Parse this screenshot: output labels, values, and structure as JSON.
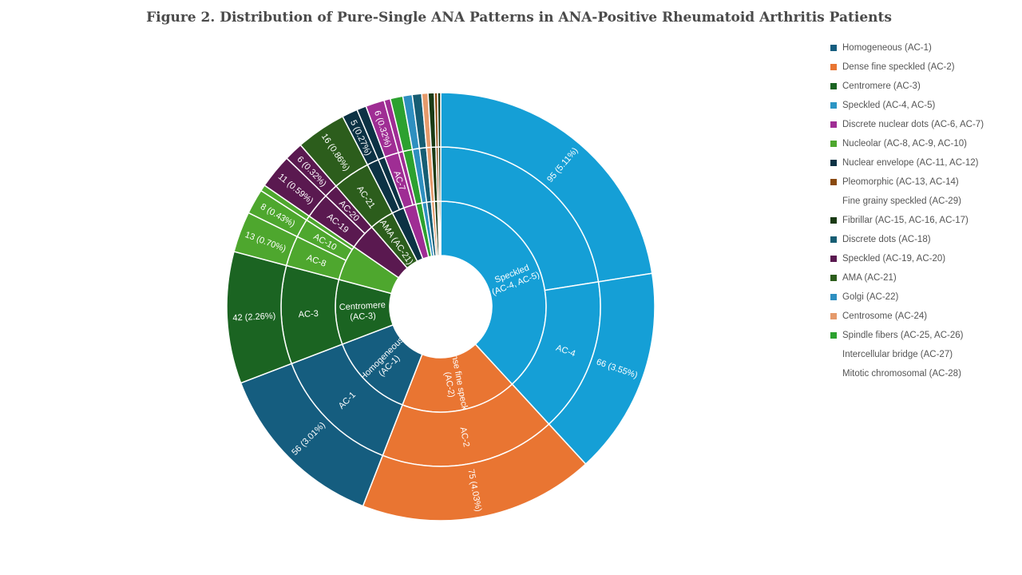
{
  "chart_data": {
    "type": "sunburst",
    "title": "Figure 2. Distribution of Pure-Single ANA Patterns in ANA-Positive Rheumatoid Arthritis Patients",
    "categories": [
      {
        "name": "Speckled (AC-4, AC-5)",
        "label": "Speckled (AC-4, AC-5)",
        "value": 161,
        "percent": 8.66,
        "color": "#159fd6",
        "children": [
          {
            "name": "AC-5",
            "value": 95,
            "percent": 5.11,
            "children": [
              {
                "value": 95,
                "percent": 5.11
              }
            ]
          },
          {
            "name": "AC-4",
            "value": 66,
            "percent": 3.55,
            "children": [
              {
                "value": 66,
                "percent": 3.55
              }
            ]
          }
        ]
      },
      {
        "name": "Dense fine speckled (AC-2)",
        "label": "Dense fine speckled (AC-2)",
        "value": 75,
        "percent": 4.03,
        "color": "#e97532",
        "children": [
          {
            "name": "AC-2",
            "value": 75,
            "percent": 4.03,
            "children": [
              {
                "value": 75,
                "percent": 4.03
              }
            ]
          }
        ]
      },
      {
        "name": "Homogeneous (AC-1)",
        "label": "Homogeneous (AC-1)",
        "value": 56,
        "percent": 3.01,
        "color": "#155d7f",
        "children": [
          {
            "name": "AC-1",
            "value": 56,
            "percent": 3.01,
            "children": [
              {
                "value": 56,
                "percent": 3.01
              }
            ]
          }
        ]
      },
      {
        "name": "Centromere (AC-3)",
        "label": "Centromere (AC-3)",
        "value": 42,
        "percent": 2.26,
        "color": "#1b6422",
        "children": [
          {
            "name": "AC-3",
            "value": 42,
            "percent": 2.26,
            "children": [
              {
                "value": 42,
                "percent": 2.26
              }
            ]
          }
        ]
      },
      {
        "name": "Nucleolar (AC-8, AC-9, AC-10)",
        "label": "",
        "value": 23,
        "percent": 1.24,
        "color": "#4ea72e",
        "children": [
          {
            "name": "AC-8",
            "value": 13,
            "percent": 0.7,
            "children": [
              {
                "value": 13,
                "percent": 0.7
              }
            ]
          },
          {
            "name": "AC-10",
            "value": 8,
            "percent": 0.43,
            "children": [
              {
                "value": 8,
                "percent": 0.43
              }
            ]
          },
          {
            "name": "AC-9",
            "value": 2,
            "percent": 0.11,
            "children": [
              {
                "value": 2,
                "percent": 0.11
              }
            ]
          }
        ]
      },
      {
        "name": "Speckled (AC-19, AC-20)",
        "label": "",
        "value": 17,
        "percent": 0.91,
        "color": "#5a1950",
        "children": [
          {
            "name": "AC-19",
            "value": 11,
            "percent": 0.59,
            "children": [
              {
                "value": 11,
                "percent": 0.59
              }
            ]
          },
          {
            "name": "AC-20",
            "value": 6,
            "percent": 0.32,
            "children": [
              {
                "value": 6,
                "percent": 0.32
              }
            ]
          }
        ]
      },
      {
        "name": "AMA (AC-21)",
        "label": "AMA (AC-21)",
        "value": 16,
        "percent": 0.86,
        "color": "#2c5d1c",
        "children": [
          {
            "name": "AC-21",
            "value": 16,
            "percent": 0.86,
            "children": [
              {
                "value": 16,
                "percent": 0.86
              }
            ]
          }
        ]
      },
      {
        "name": "Nuclear envelope (AC-11, AC-12)",
        "label": "",
        "value": 8,
        "percent": 0.43,
        "color": "#0c3244",
        "children": [
          {
            "name": "AC-12",
            "value": 5,
            "percent": 0.27,
            "children": [
              {
                "value": 5,
                "percent": 0.27
              }
            ]
          },
          {
            "name": "AC-11",
            "value": 3,
            "percent": 0.16,
            "children": [
              {
                "value": 3,
                "percent": 0.16
              }
            ]
          }
        ]
      },
      {
        "name": "Discrete nuclear dots (AC-6, AC-7)",
        "label": "",
        "value": 8,
        "percent": 0.43,
        "color": "#9f2d94",
        "children": [
          {
            "name": "AC-7",
            "value": 6,
            "percent": 0.32,
            "children": [
              {
                "value": 6,
                "percent": 0.32
              }
            ]
          },
          {
            "name": "AC-6",
            "value": 2,
            "percent": 0.11,
            "children": [
              {
                "value": 2,
                "percent": 0.11
              }
            ]
          }
        ]
      },
      {
        "name": "Spindle fibers (AC-25, AC-26)",
        "label": "",
        "value": 4,
        "percent": 0.22,
        "color": "#2ca12f",
        "children": [
          {
            "name": "AC-25",
            "value": 4,
            "percent": 0.22,
            "children": [
              {
                "value": 4,
                "percent": 0.22
              }
            ]
          }
        ]
      },
      {
        "name": "Golgi (AC-22)",
        "label": "",
        "value": 3,
        "percent": 0.16,
        "color": "#2e8fc0",
        "children": [
          {
            "name": "AC-22",
            "value": 3,
            "percent": 0.16,
            "children": [
              {
                "value": 3,
                "percent": 0.16
              }
            ]
          }
        ]
      },
      {
        "name": "Discrete dots (AC-18)",
        "label": "",
        "value": 3,
        "percent": 0.16,
        "color": "#165d73",
        "children": [
          {
            "name": "AC-18",
            "value": 3,
            "percent": 0.16,
            "children": [
              {
                "value": 3,
                "percent": 0.16
              }
            ]
          }
        ]
      },
      {
        "name": "Centrosome (AC-24)",
        "label": "",
        "value": 2,
        "percent": 0.11,
        "color": "#e59a6b",
        "children": [
          {
            "name": "AC-24",
            "value": 2,
            "percent": 0.11,
            "children": [
              {
                "value": 2,
                "percent": 0.11
              }
            ]
          }
        ]
      },
      {
        "name": "Fibrillar (AC-15, AC-16, AC-17)",
        "label": "",
        "value": 2,
        "percent": 0.11,
        "color": "#1a3a14",
        "children": [
          {
            "name": "AC-15",
            "value": 2,
            "percent": 0.11,
            "children": [
              {
                "value": 2,
                "percent": 0.11
              }
            ]
          }
        ]
      },
      {
        "name": "Pleomorphic (AC-13, AC-14)",
        "label": "",
        "value": 1,
        "percent": 0.05,
        "color": "#8a4a10",
        "children": [
          {
            "name": "AC-14",
            "value": 1,
            "percent": 0.05,
            "children": [
              {
                "value": 1,
                "percent": 0.05
              }
            ]
          }
        ]
      },
      {
        "name": "Fibrillar (AC-16)",
        "label": "",
        "value": 1,
        "percent": 0.05,
        "color": "#1a3a14",
        "children": [
          {
            "name": "AC-16",
            "value": 1,
            "percent": 0.05,
            "children": [
              {
                "value": 1,
                "percent": 0.05
              }
            ]
          }
        ]
      }
    ],
    "legend": [
      {
        "label": "Homogeneous (AC-1)",
        "color": "#155d7f"
      },
      {
        "label": "Dense fine speckled (AC-2)",
        "color": "#e97532"
      },
      {
        "label": "Centromere (AC-3)",
        "color": "#1b6422"
      },
      {
        "label": "Speckled (AC-4, AC-5)",
        "color": "#2b95c4"
      },
      {
        "label": "Discrete nuclear dots (AC-6, AC-7)",
        "color": "#9f2d94"
      },
      {
        "label": "Nucleolar (AC-8, AC-9, AC-10)",
        "color": "#4ea72e"
      },
      {
        "label": "Nuclear envelope (AC-11, AC-12)",
        "color": "#0c3244"
      },
      {
        "label": "Pleomorphic (AC-13, AC-14)",
        "color": "#8a4a10"
      },
      {
        "label": "Fine grainy speckled (AC-29)",
        "color": "#ffffff"
      },
      {
        "label": "Fibrillar (AC-15, AC-16, AC-17)",
        "color": "#1a3a14"
      },
      {
        "label": "Discrete dots (AC-18)",
        "color": "#165d73"
      },
      {
        "label": "Speckled (AC-19, AC-20)",
        "color": "#5a1950"
      },
      {
        "label": "AMA (AC-21)",
        "color": "#2c5d1c"
      },
      {
        "label": "Golgi (AC-22)",
        "color": "#2e8fc0"
      },
      {
        "label": "Centrosome (AC-24)",
        "color": "#e59a6b"
      },
      {
        "label": "Spindle fibers (AC-25, AC-26)",
        "color": "#2ca12f"
      },
      {
        "label": "Intercellular bridge (AC-27)",
        "color": "#ffffff"
      },
      {
        "label": "Mitotic chromosomal (AC-28)",
        "color": "#ffffff"
      }
    ]
  }
}
